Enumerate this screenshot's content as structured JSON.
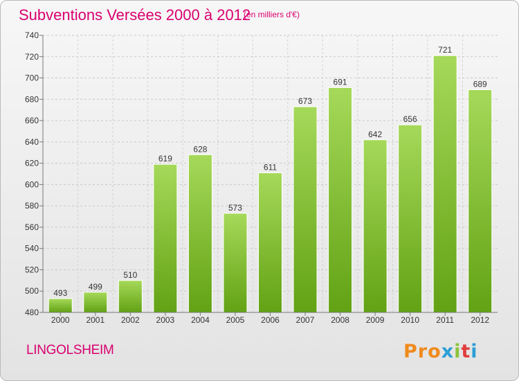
{
  "header": {
    "title": "Subventions Versées 2000 à 2012",
    "unit_note": "(en milliers d'€)"
  },
  "footer": {
    "place": "LINGOLSHEIM",
    "logo_text": "Proxiti"
  },
  "colors": {
    "accent": "#d9006f",
    "bar_light": "#a6d95a",
    "bar_dark": "#62a214"
  },
  "chart_data": {
    "type": "bar",
    "title": "Subventions Versées 2000 à 2012",
    "subtitle": "(en milliers d'€)",
    "xlabel": "",
    "ylabel": "",
    "categories": [
      "2000",
      "2001",
      "2002",
      "2003",
      "2004",
      "2005",
      "2006",
      "2007",
      "2008",
      "2009",
      "2010",
      "2011",
      "2012"
    ],
    "values": [
      493,
      499,
      510,
      619,
      628,
      573,
      611,
      673,
      691,
      642,
      656,
      721,
      689
    ],
    "ylim": [
      480,
      740
    ],
    "yticks": [
      480,
      500,
      520,
      540,
      560,
      580,
      600,
      620,
      640,
      660,
      680,
      700,
      720,
      740
    ],
    "grid": true,
    "data_labels": true
  }
}
